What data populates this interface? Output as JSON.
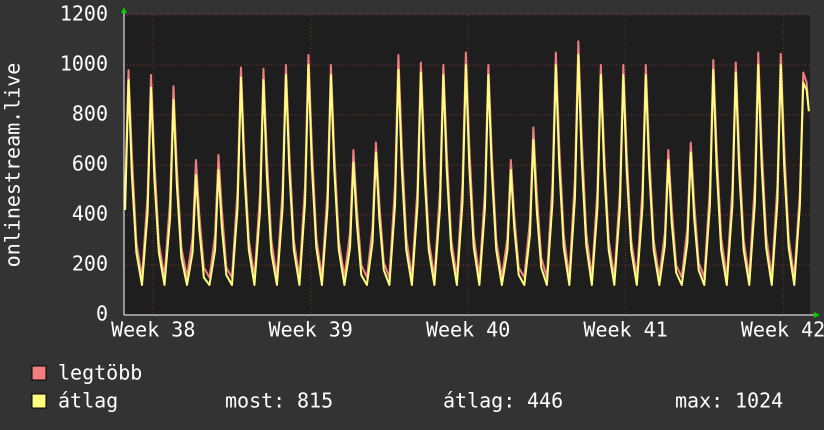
{
  "chart_data": {
    "type": "line",
    "y_label": "onlinestream.live",
    "xlim": [
      0,
      30.5
    ],
    "xticks": [
      {
        "value": 1.3,
        "label": "Week 38"
      },
      {
        "value": 8.3,
        "label": "Week 39"
      },
      {
        "value": 15.3,
        "label": "Week 40"
      },
      {
        "value": 22.3,
        "label": "Week 41"
      },
      {
        "value": 29.3,
        "label": "Week 42"
      }
    ],
    "ylim": [
      0,
      1200
    ],
    "yticks": [
      0,
      200,
      400,
      600,
      800,
      1000,
      1200
    ],
    "grid": true,
    "x": [
      0.05,
      0.2,
      0.35,
      0.55,
      0.8,
      1.05,
      1.2,
      1.35,
      1.55,
      1.8,
      2.05,
      2.2,
      2.35,
      2.55,
      2.8,
      3.05,
      3.2,
      3.35,
      3.55,
      3.8,
      4.05,
      4.2,
      4.35,
      4.55,
      4.8,
      5.05,
      5.2,
      5.35,
      5.55,
      5.8,
      6.05,
      6.2,
      6.35,
      6.55,
      6.8,
      7.05,
      7.2,
      7.35,
      7.55,
      7.8,
      8.05,
      8.2,
      8.35,
      8.55,
      8.8,
      9.05,
      9.2,
      9.35,
      9.55,
      9.8,
      10.05,
      10.2,
      10.35,
      10.55,
      10.8,
      11.05,
      11.2,
      11.35,
      11.55,
      11.8,
      12.05,
      12.2,
      12.35,
      12.55,
      12.8,
      13.05,
      13.2,
      13.35,
      13.55,
      13.8,
      14.05,
      14.2,
      14.35,
      14.55,
      14.8,
      15.05,
      15.2,
      15.35,
      15.55,
      15.8,
      16.05,
      16.2,
      16.35,
      16.55,
      16.8,
      17.05,
      17.2,
      17.35,
      17.55,
      17.8,
      18.05,
      18.2,
      18.35,
      18.55,
      18.8,
      19.05,
      19.2,
      19.35,
      19.55,
      19.8,
      20.05,
      20.2,
      20.35,
      20.55,
      20.8,
      21.05,
      21.2,
      21.35,
      21.55,
      21.8,
      22.05,
      22.2,
      22.35,
      22.55,
      22.8,
      23.05,
      23.2,
      23.35,
      23.55,
      23.8,
      24.05,
      24.2,
      24.35,
      24.55,
      24.8,
      25.05,
      25.2,
      25.35,
      25.55,
      25.8,
      26.05,
      26.2,
      26.35,
      26.55,
      26.8,
      27.05,
      27.2,
      27.35,
      27.55,
      27.8,
      28.05,
      28.2,
      28.35,
      28.55,
      28.8,
      29.05,
      29.2,
      29.35,
      29.55,
      29.8,
      30.05,
      30.2,
      30.35,
      30.45
    ],
    "series": [
      {
        "name": "legtöbb",
        "color": "#f08080",
        "values": [
          490,
          980,
          640,
          290,
          150,
          480,
          960,
          620,
          290,
          150,
          460,
          915,
          590,
          270,
          150,
          310,
          620,
          400,
          190,
          150,
          320,
          640,
          420,
          190,
          150,
          500,
          990,
          640,
          300,
          150,
          490,
          985,
          640,
          300,
          150,
          500,
          1000,
          650,
          300,
          150,
          520,
          1040,
          680,
          310,
          150,
          500,
          1000,
          650,
          300,
          150,
          330,
          660,
          430,
          200,
          150,
          350,
          690,
          450,
          210,
          150,
          520,
          1040,
          680,
          310,
          150,
          510,
          1010,
          660,
          300,
          150,
          500,
          1000,
          650,
          300,
          150,
          530,
          1050,
          680,
          320,
          150,
          500,
          1000,
          650,
          300,
          150,
          310,
          620,
          400,
          190,
          150,
          380,
          750,
          490,
          230,
          150,
          530,
          1050,
          680,
          320,
          150,
          550,
          1095,
          710,
          330,
          150,
          500,
          1000,
          650,
          300,
          150,
          500,
          1000,
          650,
          300,
          150,
          500,
          1000,
          650,
          300,
          150,
          330,
          660,
          430,
          200,
          150,
          350,
          690,
          450,
          210,
          150,
          510,
          1020,
          660,
          310,
          150,
          510,
          1010,
          660,
          300,
          150,
          530,
          1050,
          680,
          320,
          150,
          520,
          1045,
          680,
          310,
          150,
          490,
          970,
          930,
          815
        ]
      },
      {
        "name": "átlag",
        "color": "#ffff80",
        "values": [
          420,
          940,
          560,
          250,
          120,
          410,
          910,
          550,
          250,
          120,
          390,
          860,
          520,
          230,
          120,
          250,
          560,
          340,
          150,
          120,
          260,
          580,
          350,
          160,
          120,
          430,
          950,
          570,
          260,
          120,
          420,
          940,
          560,
          250,
          120,
          430,
          960,
          580,
          260,
          120,
          450,
          1000,
          600,
          270,
          120,
          430,
          960,
          580,
          260,
          120,
          270,
          610,
          370,
          160,
          120,
          290,
          650,
          390,
          180,
          120,
          440,
          980,
          590,
          260,
          120,
          440,
          970,
          580,
          260,
          120,
          430,
          960,
          580,
          260,
          120,
          450,
          1000,
          600,
          270,
          120,
          430,
          960,
          580,
          260,
          120,
          260,
          580,
          350,
          160,
          120,
          320,
          700,
          420,
          190,
          120,
          450,
          1000,
          600,
          270,
          120,
          470,
          1040,
          620,
          280,
          120,
          430,
          960,
          580,
          260,
          120,
          430,
          960,
          580,
          260,
          120,
          430,
          960,
          580,
          260,
          120,
          280,
          620,
          370,
          170,
          120,
          290,
          650,
          390,
          180,
          120,
          440,
          980,
          590,
          260,
          120,
          440,
          970,
          580,
          260,
          120,
          450,
          1000,
          600,
          270,
          120,
          450,
          1000,
          600,
          270,
          120,
          440,
          930,
          900,
          815
        ]
      }
    ],
    "stats": [
      {
        "label": "most:",
        "value": 815
      },
      {
        "label": "átlag:",
        "value": 446
      },
      {
        "label": "max:",
        "value": 1024
      }
    ]
  }
}
